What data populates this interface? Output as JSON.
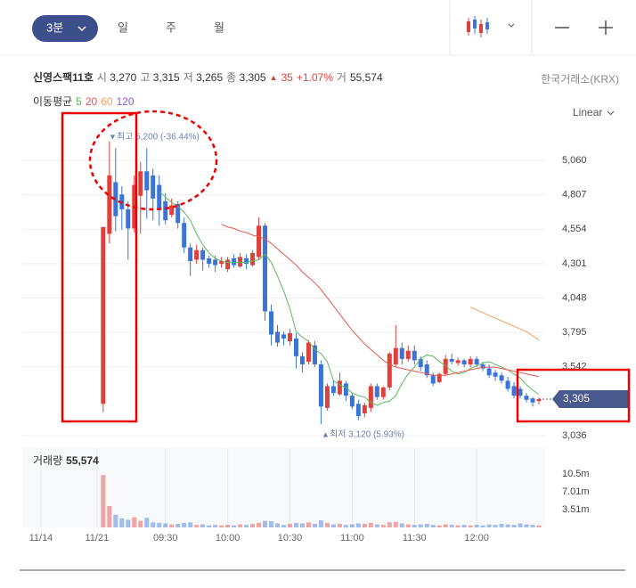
{
  "toolbar": {
    "interval": "3분",
    "periods": [
      "일",
      "주",
      "월"
    ],
    "scale": "Linear"
  },
  "info": {
    "name": "신영스팩11호",
    "quote": [
      {
        "label": "시",
        "value": "3,270"
      },
      {
        "label": "고",
        "value": "3,315"
      },
      {
        "label": "저",
        "value": "3,265"
      },
      {
        "label": "종",
        "value": "3,305"
      }
    ],
    "change": "35",
    "change_pct": "+1.07%",
    "volume_label": "거",
    "volume": "55,574",
    "exchange": "한국거래소(KRX)"
  },
  "chart_data": {
    "type": "candlestick",
    "ma_legend_label": "이동평균",
    "up_color": "#e0403c",
    "down_color": "#3a74d8",
    "xlim": [
      -13,
      71
    ],
    "xticks": [
      {
        "value": -10,
        "label": "11/14"
      },
      {
        "value": -1,
        "label": "11/21"
      },
      {
        "value": 10,
        "label": "09:30"
      },
      {
        "value": 20,
        "label": "10:00"
      },
      {
        "value": 30,
        "label": "10:30"
      },
      {
        "value": 40,
        "label": "11:00"
      },
      {
        "value": 50,
        "label": "11:30"
      },
      {
        "value": 60,
        "label": "12:00"
      }
    ],
    "ylim": [
      2964,
      5388
    ],
    "yticks": [
      {
        "value": 3036,
        "label": "3,036"
      },
      {
        "value": 3542,
        "label": "3,542"
      },
      {
        "value": 3795,
        "label": "3,795"
      },
      {
        "value": 4048,
        "label": "4,048"
      },
      {
        "value": 4301,
        "label": "4,301"
      },
      {
        "value": 4554,
        "label": "4,554"
      },
      {
        "value": 4807,
        "label": "4,807"
      },
      {
        "value": 5060,
        "label": "5,060"
      }
    ],
    "grid": true,
    "current_price": {
      "value": 3305,
      "label": "3,305"
    },
    "high_label": "최고 5,200 (-36.44%)",
    "low_label": "최저 3,120 (5.93%)",
    "open": [
      3270,
      4520,
      4900,
      4810,
      4700,
      4560,
      4800,
      4980,
      4950,
      4880,
      4760,
      4660,
      4740,
      4600,
      4420,
      4330,
      4400,
      4340,
      4330,
      4300,
      4260,
      4340,
      4280,
      4340,
      4290,
      4350,
      4580,
      3950,
      3800,
      3780,
      3730,
      3750,
      3620,
      3580,
      3700,
      3560,
      3240,
      3400,
      3340,
      3420,
      3330,
      3270,
      3200,
      3240,
      3400,
      3320,
      3390,
      3560,
      3680,
      3600,
      3660,
      3600,
      3560,
      3480,
      3430,
      3490,
      3600,
      3570,
      3590,
      3560,
      3600,
      3560,
      3530,
      3500,
      3480,
      3440,
      3400,
      3380,
      3330,
      3310,
      3290
    ],
    "high": [
      4570,
      5200,
      5150,
      4870,
      4760,
      4950,
      5050,
      5150,
      5000,
      4950,
      4820,
      4780,
      4760,
      4640,
      4450,
      4440,
      4420,
      4360,
      4360,
      4350,
      4350,
      4370,
      4380,
      4370,
      4400,
      4640,
      4600,
      4000,
      3850,
      3800,
      3820,
      3790,
      3650,
      3740,
      3730,
      3590,
      3420,
      3440,
      3500,
      3440,
      3350,
      3300,
      3280,
      3420,
      3420,
      3400,
      3650,
      3850,
      3720,
      3700,
      3700,
      3620,
      3590,
      3500,
      3500,
      3630,
      3640,
      3610,
      3600,
      3620,
      3620,
      3580,
      3560,
      3520,
      3500,
      3470,
      3430,
      3400,
      3350,
      3320,
      3315
    ],
    "low": [
      3210,
      4450,
      4540,
      4550,
      4330,
      4530,
      4520,
      4630,
      4620,
      4580,
      4590,
      4640,
      4560,
      4380,
      4210,
      4300,
      4250,
      4270,
      4240,
      4270,
      4240,
      4270,
      4270,
      4260,
      4280,
      4330,
      3880,
      3700,
      3690,
      3700,
      3700,
      3530,
      3500,
      3560,
      3540,
      3120,
      3220,
      3330,
      3330,
      3290,
      3230,
      3150,
      3170,
      3210,
      3300,
      3300,
      3370,
      3540,
      3560,
      3580,
      3560,
      3510,
      3460,
      3400,
      3420,
      3480,
      3560,
      3550,
      3540,
      3540,
      3540,
      3510,
      3460,
      3440,
      3420,
      3360,
      3310,
      3310,
      3280,
      3250,
      3265
    ],
    "close": [
      4570,
      4950,
      4650,
      4700,
      4560,
      4880,
      4980,
      4840,
      4780,
      4700,
      4620,
      4730,
      4600,
      4420,
      4320,
      4400,
      4330,
      4300,
      4290,
      4320,
      4330,
      4290,
      4350,
      4300,
      4380,
      4580,
      3950,
      3780,
      3720,
      3750,
      3790,
      3620,
      3560,
      3720,
      3560,
      3250,
      3400,
      3350,
      3440,
      3330,
      3250,
      3180,
      3260,
      3400,
      3320,
      3390,
      3640,
      3680,
      3600,
      3660,
      3590,
      3540,
      3480,
      3420,
      3490,
      3600,
      3580,
      3590,
      3560,
      3600,
      3560,
      3530,
      3480,
      3470,
      3440,
      3380,
      3330,
      3330,
      3300,
      3280,
      3305
    ],
    "ma_series": [
      {
        "name": "5",
        "color": "#5cb85c",
        "values": [
          null,
          null,
          null,
          null,
          null,
          null,
          null,
          null,
          null,
          4830,
          4790,
          4750,
          4720,
          4680,
          4620,
          4520,
          4440,
          4380,
          4340,
          4320,
          4310,
          4310,
          4310,
          4310,
          4320,
          4330,
          4370,
          4310,
          4210,
          4100,
          3970,
          3800,
          3760,
          3730,
          3670,
          3640,
          3580,
          3440,
          3410,
          3390,
          3350,
          3330,
          3320,
          3280,
          3260,
          3280,
          3290,
          3330,
          3420,
          3490,
          3540,
          3600,
          3630,
          3620,
          3580,
          3550,
          3510,
          3490,
          3500,
          3530,
          3550,
          3570,
          3580,
          3560,
          3540,
          3520,
          3490,
          3460,
          3410,
          3370,
          3340
        ]
      },
      {
        "name": "20",
        "color": "#e8574f",
        "values": [
          null,
          null,
          null,
          null,
          null,
          null,
          null,
          null,
          null,
          null,
          null,
          null,
          null,
          null,
          null,
          null,
          null,
          null,
          null,
          4590,
          4570,
          4560,
          4540,
          4530,
          4510,
          4500,
          4480,
          4450,
          4410,
          4370,
          4330,
          4290,
          4240,
          4200,
          4160,
          4110,
          4050,
          3990,
          3930,
          3870,
          3810,
          3760,
          3710,
          3670,
          3630,
          3590,
          3560,
          3540,
          3530,
          3520,
          3510,
          3500,
          3490,
          3480,
          3480,
          3480,
          3490,
          3500,
          3510,
          3520,
          3530,
          3540,
          3540,
          3540,
          3530,
          3520,
          3510,
          3500,
          3490,
          3480,
          3470
        ]
      },
      {
        "name": "60",
        "color": "#f0a060",
        "values": [
          null,
          null,
          null,
          null,
          null,
          null,
          null,
          null,
          null,
          null,
          null,
          null,
          null,
          null,
          null,
          null,
          null,
          null,
          null,
          null,
          null,
          null,
          null,
          null,
          null,
          null,
          null,
          null,
          null,
          null,
          null,
          null,
          null,
          null,
          null,
          null,
          null,
          null,
          null,
          null,
          null,
          null,
          null,
          null,
          null,
          null,
          null,
          null,
          null,
          null,
          null,
          null,
          null,
          null,
          null,
          null,
          null,
          null,
          null,
          3980,
          3960,
          3940,
          3920,
          3900,
          3880,
          3860,
          3840,
          3820,
          3800,
          3770,
          3740
        ]
      },
      {
        "name": "120",
        "color": "#8a5bd0",
        "values": [
          null,
          null,
          null,
          null,
          null,
          null,
          null,
          null,
          null,
          null,
          null,
          null,
          null,
          null,
          null,
          null,
          null,
          null,
          null,
          null,
          null,
          null,
          null,
          null,
          null,
          null,
          null,
          null,
          null,
          null,
          null,
          null,
          null,
          null,
          null,
          null,
          null,
          null,
          null,
          null,
          null,
          null,
          null,
          null,
          null,
          null,
          null,
          null,
          null,
          null,
          null,
          null,
          null,
          null,
          null,
          null,
          null,
          null,
          null,
          null,
          null,
          null,
          null,
          null,
          null,
          null,
          null,
          null,
          null,
          null,
          null
        ]
      }
    ],
    "volume_title": "거래량",
    "volume_total": "55,574",
    "volume": [
      10300000,
      4200000,
      2500000,
      1800000,
      1500000,
      2000000,
      1300000,
      1900000,
      1000000,
      900000,
      800000,
      600000,
      700000,
      900000,
      1000000,
      500000,
      600000,
      400000,
      500000,
      400000,
      500000,
      400000,
      600000,
      500000,
      700000,
      900000,
      1300000,
      1200000,
      800000,
      500000,
      700000,
      900000,
      800000,
      1000000,
      700000,
      1400000,
      900000,
      600000,
      700000,
      500000,
      600000,
      800000,
      700000,
      900000,
      600000,
      500000,
      1000000,
      1100000,
      800000,
      600000,
      500000,
      600000,
      700000,
      500000,
      400000,
      600000,
      500000,
      400000,
      500000,
      400000,
      500000,
      400000,
      600000,
      500000,
      700000,
      600000,
      500000,
      800000,
      600000,
      500000,
      400000
    ],
    "vlim": [
      0,
      15600000
    ],
    "vticks": [
      {
        "value": 3510000,
        "label": "3.51m"
      },
      {
        "value": 7010000,
        "label": "7.01m"
      },
      {
        "value": 10500000,
        "label": "10.5m"
      }
    ]
  }
}
